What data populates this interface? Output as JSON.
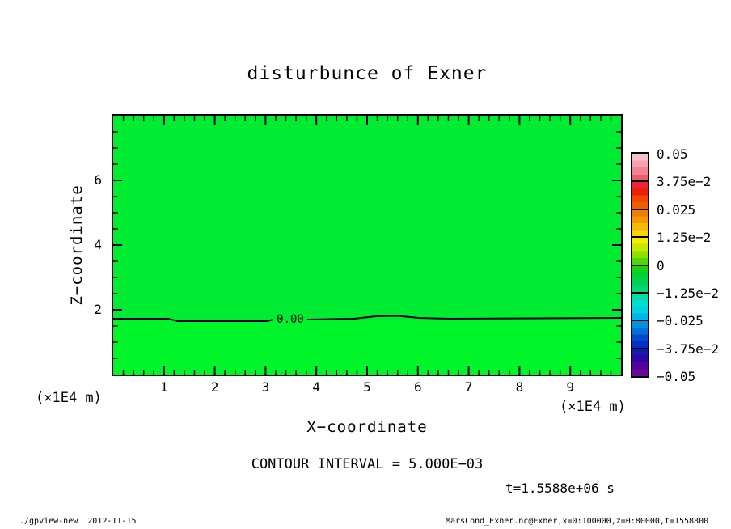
{
  "title": "disturbunce of Exner",
  "plot": {
    "fill_color_above_contour": "#00ec33",
    "fill_color_below_contour": "#00f42a",
    "contour_label": "0.00",
    "x_axis": {
      "label": "X−coordinate",
      "unit_left": "(×1E4 m)",
      "unit_right": "(×1E4 m)",
      "min": 0,
      "max": 10,
      "major_ticks": [
        1,
        2,
        3,
        4,
        5,
        6,
        7,
        8,
        9
      ],
      "minor_step": 0.2
    },
    "z_axis": {
      "label": "Z−coordinate",
      "min": 0,
      "max": 8,
      "major_ticks": [
        2,
        4,
        6
      ],
      "minor_step": 0.5
    }
  },
  "colorbar": {
    "tick_labels": [
      "0.05",
      "3.75e−2",
      "0.025",
      "1.25e−2",
      "0",
      "−1.25e−2",
      "−0.025",
      "−3.75e−2",
      "−0.05"
    ],
    "colors": [
      "#f6c0c8",
      "#f4a4ae",
      "#f18492",
      "#ee5e6c",
      "#ee2434",
      "#ee1e08",
      "#f04600",
      "#f05e00",
      "#f07c00",
      "#f29a00",
      "#f4b800",
      "#f6d600",
      "#f0ee00",
      "#c4e800",
      "#8ede00",
      "#4cd800",
      "#16d214",
      "#00d232",
      "#00d254",
      "#00d67c",
      "#00daa4",
      "#00dece",
      "#00d2e2",
      "#00b6e6",
      "#0092de",
      "#006ed6",
      "#004ace",
      "#0030c6",
      "#1418b6",
      "#3204a8",
      "#50009e",
      "#6a0894"
    ]
  },
  "annotations": {
    "contour_interval": "CONTOUR INTERVAL = 5.000E−03",
    "time": "t=1.5588e+06 s"
  },
  "footer": {
    "left": "./gpview-new  2012-11-15",
    "right": "MarsCond_Exner.nc@Exner,x=0:100000,z=0:80000,t=1558800"
  },
  "chart_data": {
    "type": "heatmap",
    "title": "disturbunce of Exner",
    "xlabel": "X−coordinate (×1E4 m)",
    "ylabel": "Z−coordinate (×1E4 m)",
    "xlim": [
      0,
      10
    ],
    "ylim": [
      0,
      8
    ],
    "x_major_ticks": [
      1,
      2,
      3,
      4,
      5,
      6,
      7,
      8,
      9
    ],
    "z_major_ticks": [
      2,
      4,
      6
    ],
    "colorbar_tick_values": [
      0.05,
      0.0375,
      0.025,
      0.0125,
      0,
      -0.0125,
      -0.025,
      -0.0375,
      -0.05
    ],
    "contour_interval": 0.005,
    "contours": [
      {
        "level": 0.0,
        "label": "0.00",
        "approx_z": 1.75,
        "shape": "nearly horizontal line at z ≈ 1.75 (×1E4 m) spanning full x range, tiny dip near x≈2–3 and slight bump near x≈5.5"
      }
    ],
    "field_summary": "Exner disturbance ≈ 0 over entire domain; whole field rendered in the green band adjacent to 0",
    "time_annotation": "t=1.5588e+06 s",
    "legend_position": "right colorbar"
  }
}
